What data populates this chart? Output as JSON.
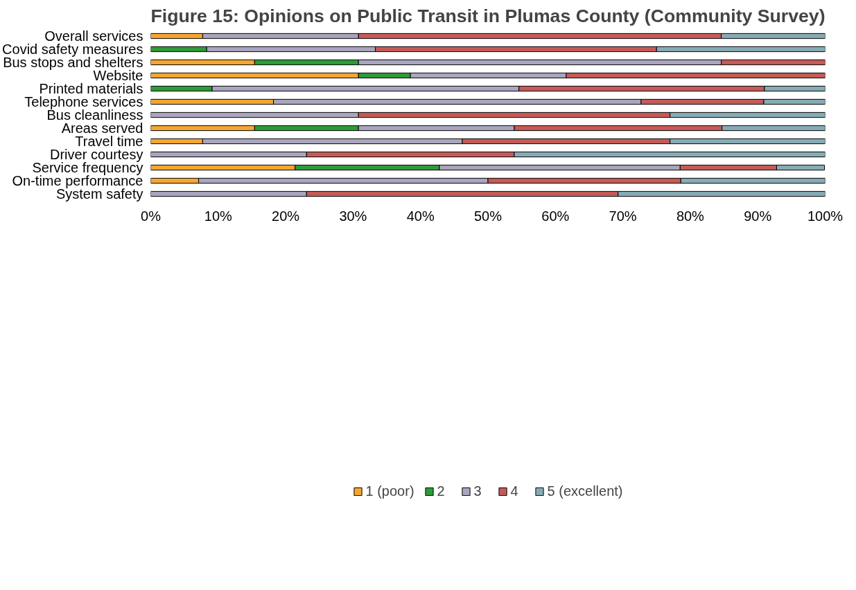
{
  "chart_data": {
    "type": "bar",
    "orientation": "horizontal",
    "stacked": true,
    "title": "Figure 15: Opinions on Public Transit in Plumas County (Community Survey)",
    "categories": [
      "Overall services",
      "Covid safety measures",
      "Bus stops and shelters",
      "Website",
      "Printed materials",
      "Telephone services",
      "Bus cleanliness",
      "Areas served",
      "Travel time",
      "Driver courtesy",
      "Service frequency",
      "On-time performance",
      "System safety"
    ],
    "series": [
      {
        "name": "1 (poor)",
        "color": "#f5a631",
        "values": [
          7.7,
          null,
          15.4,
          30.8,
          null,
          18.2,
          null,
          15.4,
          7.7,
          null,
          21.4,
          7.1,
          null
        ]
      },
      {
        "name": "2",
        "color": "#2e9a38",
        "values": [
          null,
          8.3,
          15.4,
          7.7,
          9.1,
          null,
          null,
          15.4,
          null,
          null,
          21.4,
          null,
          null
        ]
      },
      {
        "name": "3",
        "color": "#aaa5be",
        "values": [
          23.1,
          25.0,
          53.8,
          23.1,
          45.5,
          54.5,
          30.8,
          23.1,
          38.5,
          23.1,
          35.7,
          42.9,
          23.1
        ]
      },
      {
        "name": "4",
        "color": "#c55a57",
        "values": [
          53.8,
          41.7,
          15.4,
          38.5,
          36.4,
          18.2,
          46.2,
          30.8,
          30.8,
          30.8,
          14.3,
          28.6,
          46.2
        ]
      },
      {
        "name": "5 (excellent)",
        "color": "#86abb5",
        "values": [
          15.4,
          25.0,
          null,
          null,
          9.1,
          9.1,
          23.1,
          15.4,
          23.1,
          46.2,
          7.1,
          21.4,
          30.8
        ]
      }
    ],
    "xlim": [
      0,
      100
    ],
    "xticks": [
      {
        "value": 0,
        "label": "0%"
      },
      {
        "value": 10,
        "label": "10%"
      },
      {
        "value": 20,
        "label": "20%"
      },
      {
        "value": 30,
        "label": "30%"
      },
      {
        "value": 40,
        "label": "40%"
      },
      {
        "value": 50,
        "label": "50%"
      },
      {
        "value": 60,
        "label": "60%"
      },
      {
        "value": 70,
        "label": "70%"
      },
      {
        "value": 80,
        "label": "80%"
      },
      {
        "value": 90,
        "label": "90%"
      },
      {
        "value": 100,
        "label": "100%"
      }
    ],
    "grid": false,
    "legend": "bottom"
  }
}
